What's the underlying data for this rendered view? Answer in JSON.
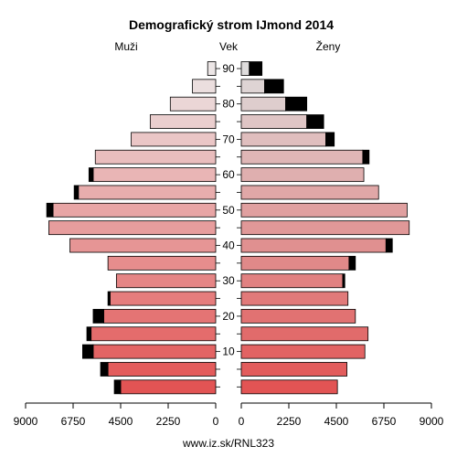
{
  "chart_data": {
    "type": "bar",
    "title": "Demografický strom IJmond 2014",
    "left_label": "Muži",
    "center_label": "Vek",
    "right_label": "Ženy",
    "footer": "www.iz.sk/RNL323",
    "age_groups": [
      "0-4",
      "5-9",
      "10-14",
      "15-19",
      "20-24",
      "25-29",
      "30-34",
      "35-39",
      "40-44",
      "45-49",
      "50-54",
      "55-59",
      "60-64",
      "65-69",
      "70-74",
      "75-79",
      "80-84",
      "85-89",
      "90+"
    ],
    "age_tick_labels": [
      "10",
      "20",
      "30",
      "40",
      "50",
      "60",
      "70",
      "80",
      "90"
    ],
    "value_tick_labels": [
      "9000",
      "6750",
      "4500",
      "2250",
      "0",
      "2250",
      "4500",
      "6750",
      "9000"
    ],
    "xlim": [
      0,
      9000
    ],
    "series": [
      {
        "name": "Muži",
        "values": [
          4500,
          5100,
          5800,
          5900,
          5300,
          5000,
          4700,
          5100,
          6900,
          7900,
          7700,
          6500,
          5800,
          5700,
          4000,
          3100,
          2150,
          1100,
          380
        ],
        "excess": [
          300,
          350,
          500,
          200,
          500,
          100,
          0,
          0,
          0,
          0,
          300,
          200,
          200,
          0,
          0,
          0,
          0,
          0,
          0
        ]
      },
      {
        "name": "Ženy",
        "values": [
          4550,
          5000,
          5850,
          6000,
          5400,
          5050,
          4800,
          5100,
          6850,
          7950,
          7850,
          6500,
          5800,
          5750,
          4000,
          3100,
          2100,
          1100,
          380
        ],
        "excess": [
          0,
          0,
          0,
          0,
          0,
          0,
          100,
          300,
          300,
          0,
          0,
          0,
          0,
          300,
          400,
          800,
          1000,
          900,
          600
        ]
      }
    ]
  }
}
